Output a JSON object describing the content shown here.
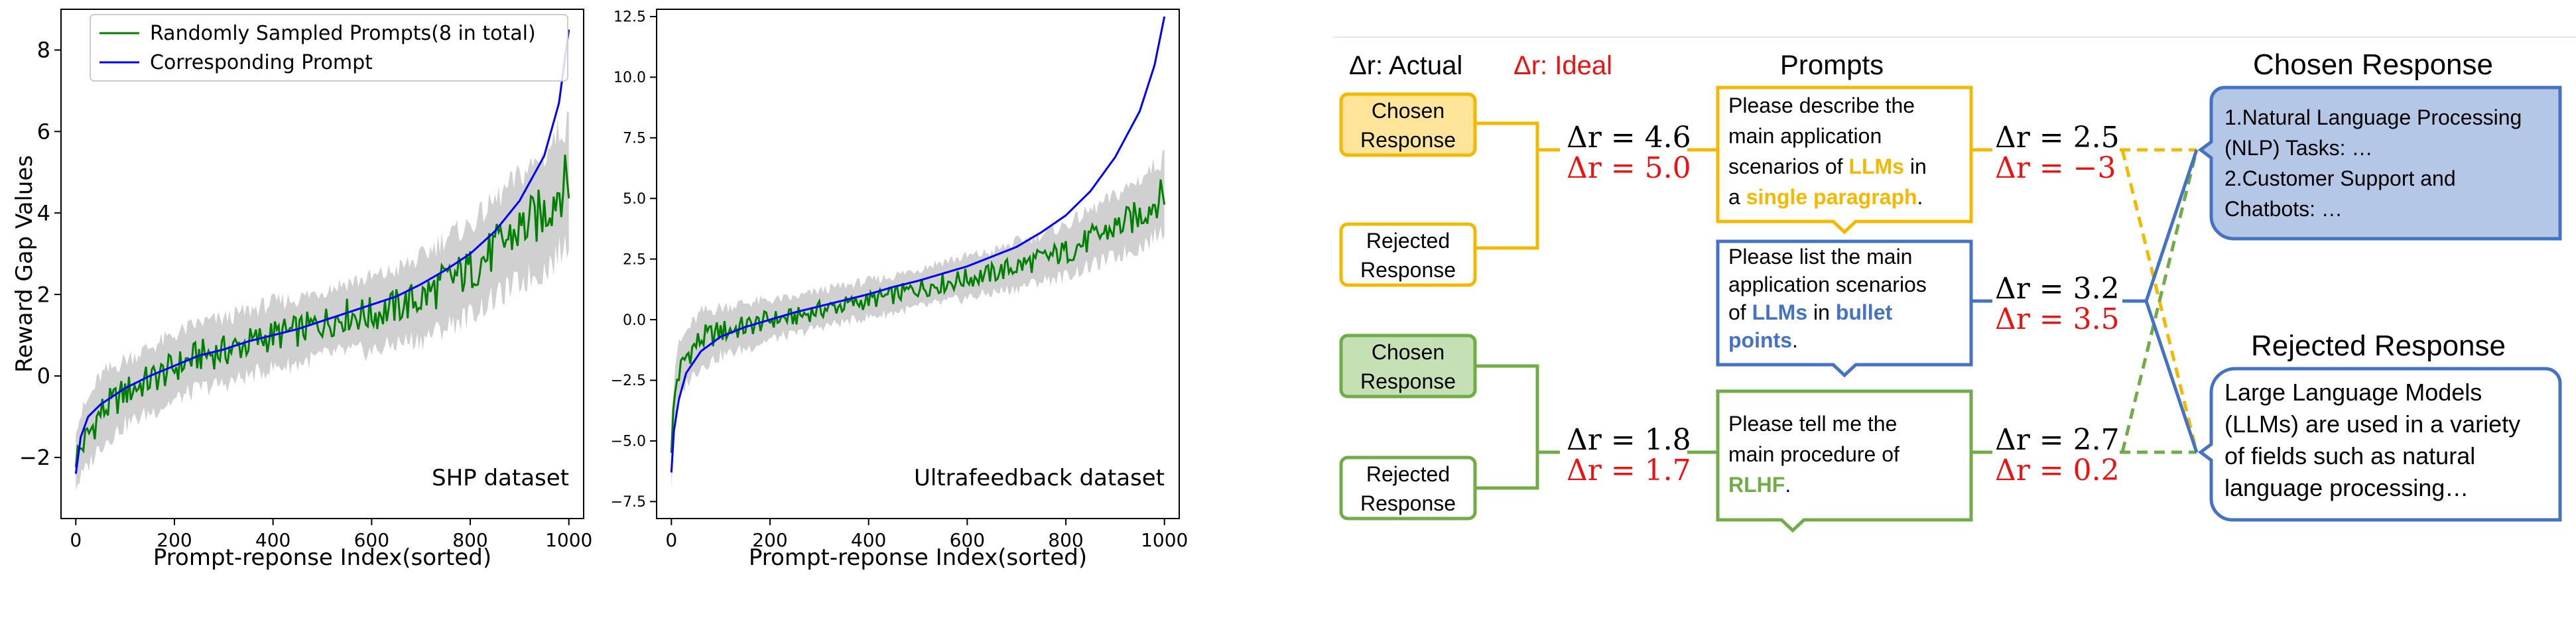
{
  "chart_data": [
    {
      "type": "line",
      "ylabel": "Reward Gap Values",
      "xlabel": "Prompt-reponse Index(sorted)",
      "annotation": "SHP dataset",
      "xlim": [
        -30,
        1030
      ],
      "ylim": [
        -3.5,
        9.0
      ],
      "xticks": [
        0,
        200,
        400,
        600,
        800,
        1000
      ],
      "xtick_labels": [
        "0",
        "200",
        "400",
        "600",
        "800",
        "1000"
      ],
      "yticks": [
        -2,
        0,
        2,
        4,
        6,
        8
      ],
      "ytick_labels": [
        "−2",
        "0",
        "2",
        "4",
        "6",
        "8"
      ],
      "grid": false,
      "legend": "top-left",
      "series": [
        {
          "name": "Randomly Sampled Prompts(8 in total)",
          "color": "#008000",
          "x": [
            0,
            50,
            100,
            150,
            200,
            250,
            300,
            350,
            400,
            450,
            500,
            550,
            600,
            650,
            700,
            750,
            800,
            850,
            900,
            950,
            980,
            1000
          ],
          "y": [
            -2.0,
            -0.9,
            -0.4,
            -0.1,
            0.2,
            0.5,
            0.6,
            0.8,
            1.0,
            1.1,
            1.3,
            1.5,
            1.5,
            1.7,
            1.9,
            2.3,
            2.6,
            3.1,
            3.6,
            4.0,
            4.6,
            4.8
          ],
          "band_low": [
            -2.7,
            -1.7,
            -1.2,
            -0.9,
            -0.6,
            -0.3,
            -0.2,
            0.0,
            0.2,
            0.3,
            0.5,
            0.6,
            0.6,
            0.8,
            0.9,
            1.2,
            1.5,
            1.9,
            2.3,
            2.6,
            3.0,
            3.3
          ],
          "band_high": [
            -1.2,
            0.0,
            0.4,
            0.7,
            1.0,
            1.3,
            1.4,
            1.6,
            1.8,
            1.9,
            2.1,
            2.3,
            2.4,
            2.6,
            2.9,
            3.4,
            3.7,
            4.3,
            4.9,
            5.4,
            6.0,
            6.2
          ]
        },
        {
          "name": "Corresponding Prompt",
          "color": "#0000ff",
          "x": [
            0,
            10,
            25,
            50,
            100,
            150,
            200,
            250,
            300,
            350,
            400,
            450,
            500,
            550,
            600,
            650,
            700,
            750,
            800,
            850,
            900,
            950,
            980,
            1000
          ],
          "y": [
            -2.4,
            -1.5,
            -1.0,
            -0.7,
            -0.3,
            0.0,
            0.25,
            0.5,
            0.65,
            0.85,
            1.0,
            1.15,
            1.35,
            1.55,
            1.75,
            1.95,
            2.25,
            2.6,
            3.0,
            3.55,
            4.3,
            5.4,
            6.7,
            8.5
          ]
        }
      ]
    },
    {
      "type": "line",
      "xlabel": "Prompt-reponse Index(sorted)",
      "annotation": "Ultrafeedback dataset",
      "xlim": [
        -30,
        1030
      ],
      "ylim": [
        -8.2,
        12.8
      ],
      "xticks": [
        0,
        200,
        400,
        600,
        800,
        1000
      ],
      "xtick_labels": [
        "0",
        "200",
        "400",
        "600",
        "800",
        "1000"
      ],
      "yticks": [
        -7.5,
        -5.0,
        -2.5,
        0.0,
        2.5,
        5.0,
        7.5,
        10.0,
        12.5
      ],
      "ytick_labels": [
        "−7.5",
        "−5.0",
        "−2.5",
        "0.0",
        "2.5",
        "5.0",
        "7.5",
        "10.0",
        "12.5"
      ],
      "grid": false,
      "series": [
        {
          "color": "#008000",
          "x": [
            0,
            10,
            30,
            60,
            100,
            150,
            200,
            250,
            300,
            350,
            400,
            450,
            500,
            550,
            600,
            650,
            700,
            750,
            800,
            850,
            900,
            950,
            1000
          ],
          "y": [
            -5.0,
            -2.5,
            -1.5,
            -0.8,
            -0.5,
            -0.3,
            0.0,
            0.1,
            0.4,
            0.6,
            0.8,
            1.0,
            1.3,
            1.5,
            1.7,
            1.9,
            2.2,
            2.5,
            2.8,
            3.3,
            3.8,
            4.3,
            5.2
          ],
          "band_low": [
            -6.7,
            -3.6,
            -2.6,
            -1.9,
            -1.5,
            -1.2,
            -0.8,
            -0.6,
            -0.3,
            -0.1,
            0.1,
            0.3,
            0.5,
            0.7,
            0.9,
            1.1,
            1.3,
            1.6,
            1.8,
            2.2,
            2.6,
            3.0,
            3.7
          ],
          "band_high": [
            -3.6,
            -1.3,
            -0.5,
            0.3,
            0.5,
            0.7,
            0.8,
            0.9,
            1.2,
            1.4,
            1.6,
            1.8,
            2.1,
            2.4,
            2.6,
            2.8,
            3.2,
            3.5,
            3.9,
            4.5,
            5.1,
            5.8,
            6.7
          ]
        },
        {
          "color": "#0000ff",
          "x": [
            0,
            5,
            15,
            30,
            60,
            100,
            150,
            200,
            250,
            300,
            350,
            400,
            450,
            500,
            550,
            600,
            650,
            700,
            750,
            800,
            850,
            900,
            950,
            980,
            1000
          ],
          "y": [
            -6.3,
            -4.6,
            -3.3,
            -2.2,
            -1.3,
            -0.7,
            -0.3,
            0.0,
            0.3,
            0.55,
            0.8,
            1.05,
            1.35,
            1.6,
            1.9,
            2.2,
            2.6,
            3.0,
            3.6,
            4.3,
            5.3,
            6.7,
            8.6,
            10.5,
            12.5
          ]
        }
      ]
    }
  ],
  "colors": {
    "yellow": "#f5b800",
    "yellow_fill": "#ffe599",
    "green": "#70ad47",
    "green_fill": "#c5e0b4",
    "blue": "#4472c4",
    "blue_fill": "#b4c7e7",
    "red": "#ee1111",
    "blue_text": "#4472c4",
    "yellow_text": "#f5b800",
    "green_text": "#70ad47"
  },
  "diagram": {
    "legend": {
      "actual": "Δr: Actual",
      "ideal": "Δr: Ideal"
    },
    "headers": {
      "prompts": "Prompts",
      "chosen": "Chosen Response",
      "rejected": "Rejected Response"
    },
    "groups": [
      {
        "chosen_label": "Chosen Response",
        "rejected_label": "Rejected Response",
        "actual": "Δr = 4.6",
        "ideal": "Δr = 5.0"
      },
      {
        "chosen_label": "Chosen Response",
        "rejected_label": "Rejected Response",
        "actual": "Δr = 1.8",
        "ideal": "Δr = 1.7"
      }
    ],
    "prompts": [
      {
        "lines": [
          [
            {
              "t": "Please describe the"
            }
          ],
          [
            {
              "t": "main application"
            }
          ],
          [
            {
              "t": "scenarios of "
            },
            {
              "t": "LLMs",
              "c": "yellow_text",
              "b": true
            },
            {
              "t": " in"
            }
          ],
          [
            {
              "t": "a "
            },
            {
              "t": "single paragraph",
              "c": "yellow_text",
              "b": true
            },
            {
              "t": "."
            }
          ]
        ],
        "actual": "Δr = 2.5",
        "ideal": "Δr = −3"
      },
      {
        "lines": [
          [
            {
              "t": "Please list the main"
            }
          ],
          [
            {
              "t": "application scenarios"
            }
          ],
          [
            {
              "t": "of "
            },
            {
              "t": "LLMs",
              "c": "blue_text",
              "b": true
            },
            {
              "t": " in "
            },
            {
              "t": "bullet",
              "c": "blue_text",
              "b": true
            }
          ],
          [
            {
              "t": "points",
              "c": "blue_text",
              "b": true
            },
            {
              "t": "."
            }
          ]
        ],
        "actual": "Δr = 3.2",
        "ideal": "Δr = 3.5"
      },
      {
        "lines": [
          [
            {
              "t": "Please tell me the"
            }
          ],
          [
            {
              "t": "main procedure of"
            }
          ],
          [
            {
              "t": "RLHF",
              "c": "green_text",
              "b": true
            },
            {
              "t": "."
            }
          ]
        ],
        "actual": "Δr = 2.7",
        "ideal": "Δr = 0.2"
      }
    ],
    "chosen_response": {
      "lines": [
        "1.Natural Language Processing",
        "(NLP) Tasks: …",
        "2.Customer Support and",
        "Chatbots: …"
      ]
    },
    "rejected_response": {
      "lines": [
        "Large Language Models",
        "(LLMs) are used in a variety",
        "of fields such as natural",
        "language processing…"
      ]
    }
  }
}
